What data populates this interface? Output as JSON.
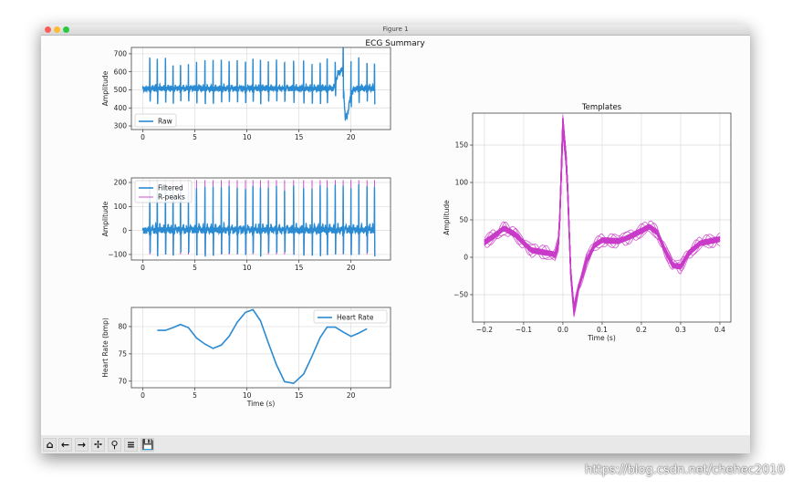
{
  "window": {
    "title": "Figure 1"
  },
  "figure": {
    "suptitle": "ECG Summary"
  },
  "toolbar": {
    "buttons": [
      "home",
      "back",
      "forward",
      "pan",
      "zoom",
      "configure-subplots",
      "save"
    ]
  },
  "watermark": "https://blog.csdn.net/chehec2010",
  "colors": {
    "signal": "#2a8bd2",
    "templates": "#c93bc9",
    "rpeaks": "#c93bc9"
  },
  "chart_data": [
    {
      "type": "line",
      "id": "raw",
      "ylabel": "Amplitude",
      "xlabel": "",
      "xlim": [
        -1.1,
        23.8
      ],
      "ylim": [
        280,
        735
      ],
      "xticks": [
        0,
        5,
        10,
        15,
        20
      ],
      "yticks": [
        300,
        400,
        500,
        600,
        700
      ],
      "grid": true,
      "legend": "lower-left",
      "series": [
        {
          "name": "Raw"
        }
      ],
      "r_peak_times": [
        0.67,
        1.39,
        2.17,
        2.9,
        3.62,
        4.38,
        5.16,
        5.97,
        6.75,
        7.54,
        8.29,
        9.07,
        9.86,
        10.58,
        11.3,
        12.06,
        12.84,
        13.62,
        14.49,
        15.45,
        16.26,
        17.04,
        17.71,
        18.49,
        19.25,
        20.0,
        20.75,
        21.54,
        22.26
      ],
      "r_peak_amplitudes": [
        683,
        675,
        675,
        651,
        641,
        668,
        668,
        672,
        672,
        675,
        663,
        675,
        672,
        675,
        675,
        668,
        672,
        672,
        663,
        675,
        656,
        651,
        683,
        620,
        713,
        697,
        675,
        651,
        651
      ],
      "baseline": [
        [
          0,
          505
        ],
        [
          18.3,
          505
        ],
        [
          18.8,
          590
        ],
        [
          19.2,
          615
        ],
        [
          19.45,
          330
        ],
        [
          19.7,
          370
        ],
        [
          20.0,
          480
        ],
        [
          20.5,
          505
        ],
        [
          22.3,
          505
        ]
      ],
      "duration": 22.3
    },
    {
      "type": "line",
      "id": "filtered",
      "ylabel": "Amplitude",
      "xlim": [
        -1.1,
        23.8
      ],
      "ylim": [
        -123,
        219
      ],
      "xticks": [
        0,
        5,
        10,
        15,
        20
      ],
      "yticks": [
        -100,
        0,
        100,
        200
      ],
      "grid": true,
      "legend": "upper-left",
      "series": [
        {
          "name": "Filtered"
        },
        {
          "name": "R-peaks"
        }
      ],
      "r_peak_range": [
        -100,
        210
      ]
    },
    {
      "type": "line",
      "id": "heart_rate",
      "xlabel": "Time (s)",
      "ylabel": "Heart Rate (bmp)",
      "xlim": [
        -1.1,
        23.8
      ],
      "ylim": [
        68.8,
        83.5
      ],
      "xticks": [
        0,
        5,
        10,
        15,
        20
      ],
      "yticks": [
        70,
        75,
        80
      ],
      "grid": true,
      "legend": "upper-right",
      "series": [
        {
          "name": "Heart Rate",
          "x": [
            1.39,
            2.17,
            2.9,
            3.62,
            4.38,
            5.16,
            5.97,
            6.75,
            7.54,
            8.29,
            9.07,
            9.86,
            10.58,
            11.3,
            12.06,
            12.84,
            13.62,
            14.49,
            15.45,
            16.26,
            17.04,
            17.71,
            18.49,
            19.25,
            20.0,
            20.75,
            21.54
          ],
          "y": [
            79.3,
            79.3,
            79.8,
            80.4,
            79.8,
            77.9,
            76.8,
            76.0,
            76.6,
            78.2,
            80.8,
            82.6,
            83.1,
            81.1,
            77.0,
            73.0,
            69.9,
            69.6,
            71.3,
            74.6,
            78.0,
            79.9,
            79.9,
            79.0,
            78.2,
            78.8,
            79.6
          ]
        }
      ]
    },
    {
      "type": "line",
      "id": "templates",
      "title": "Templates",
      "xlabel": "Time (s)",
      "ylabel": "Amplitude",
      "xlim": [
        -0.23,
        0.428
      ],
      "ylim": [
        -86.6,
        192.7
      ],
      "xticks": [
        -0.2,
        -0.1,
        0.0,
        0.1,
        0.2,
        0.3,
        0.4
      ],
      "yticks": [
        -50,
        0,
        50,
        100,
        150
      ],
      "xticklabels": [
        "−0.2",
        "−0.1",
        "0.0",
        "0.1",
        "0.2",
        "0.3",
        "0.4"
      ],
      "grid": true,
      "mean_template": {
        "x": [
          -0.2,
          -0.17,
          -0.15,
          -0.12,
          -0.08,
          -0.04,
          -0.02,
          -0.01,
          0,
          0.01,
          0.02,
          0.028,
          0.04,
          0.06,
          0.08,
          0.1,
          0.14,
          0.17,
          0.2,
          0.22,
          0.24,
          0.26,
          0.28,
          0.3,
          0.32,
          0.35,
          0.4
        ],
        "y": [
          20,
          30,
          38,
          30,
          10,
          5,
          3,
          20,
          178,
          120,
          -20,
          -70,
          -40,
          -5,
          15,
          22,
          22,
          28,
          35,
          40,
          33,
          10,
          -10,
          -12,
          5,
          18,
          25
        ]
      },
      "template_count": 29
    }
  ]
}
